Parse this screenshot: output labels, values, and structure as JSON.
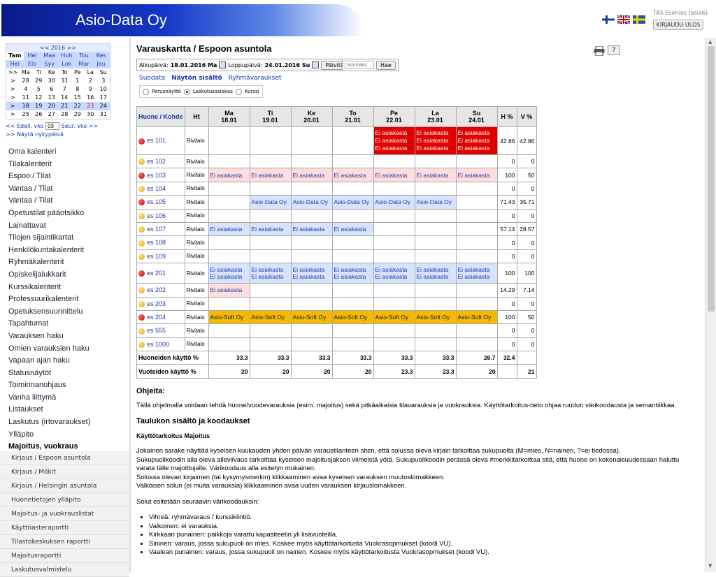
{
  "brand": "Asio-Data Oy",
  "user_label": "TAS Esimies (asio6)",
  "logout_label": "KIRJAUDU ULOS",
  "calendar": {
    "year_label": "<< 2016 >>",
    "months": [
      [
        "Tam",
        "Hel",
        "Maa",
        "Huh",
        "Tou",
        "Kes"
      ],
      [
        "Hei",
        "Elo",
        "Syy",
        "Lok",
        "Mar",
        "Jou"
      ]
    ],
    "weekdays": [
      ">>",
      "Ma",
      "Ti",
      "Ke",
      "To",
      "Pe",
      "La",
      "Su"
    ],
    "weeks": [
      [
        ">",
        "28",
        "29",
        "30",
        "31",
        "1",
        "2",
        "3"
      ],
      [
        ">",
        "4",
        "5",
        "6",
        "7",
        "8",
        "9",
        "10"
      ],
      [
        ">",
        "11",
        "12",
        "13",
        "14",
        "15",
        "16",
        "17"
      ],
      [
        ">",
        "18",
        "19",
        "20",
        "21",
        "22",
        "23",
        "24"
      ],
      [
        ">",
        "25",
        "26",
        "27",
        "28",
        "29",
        "30",
        "31"
      ]
    ],
    "prev_week": "<< Edell. vko",
    "week_value": "03",
    "next_week": "Seur. vko >>",
    "show_current": ">> Näytä nykypäivä"
  },
  "menu": [
    "Oma kalenteri",
    "Tilakalenterit",
    "Espoo / Tilat",
    "Vantaa / Tilat",
    "Vantaa / Tilat",
    "Opetustilat pääotsikko",
    "Lainattavat",
    "Tilojen sijaintikartat",
    "Henkilökuntakalenterit",
    "Ryhmäkalenterit",
    "Opiskelijalukkarit",
    "Kurssikalenterit",
    "Professuurikalenterit",
    "Opetuksensuunnittelu",
    "Tapahtumat",
    "Varauksen haku",
    "Omien varauksien haku",
    "Vapaan ajan haku",
    "Statusnäytöt",
    "Toiminnanohjaus",
    "Vanha liittymä",
    "Listaukset",
    "Laskutus (irtovaraukset)",
    "Ylläpito",
    "Majoitus, vuokraus"
  ],
  "submenu": [
    "Kirjaus / Espoon asuntola",
    "Kirjaus / Mökit",
    "Kirjaus / Helsingin asuntola",
    "Huonetietojen ylläpito",
    "Majoitus- ja vuokrauslistat",
    "Käyttöasteraportti",
    "Tilastokeskuksen raportti",
    "Majoitusraportti",
    "Laskutusvalmistelu"
  ],
  "page_title": "Varauskartta / Espoon asuntola",
  "help_btn": "?",
  "datebar": {
    "start_label": "Alkupäivä:",
    "start_value": "18.01.2016 Ma",
    "end_label": "Loppupäivä:",
    "end_value": "24.01.2016 Su",
    "refresh": "Päivitä",
    "name_placeholder": "Nimihaku",
    "search": "Hae"
  },
  "links": [
    "Suodata",
    "Näytön sisältö",
    "Ryhmävaraukset"
  ],
  "radios": [
    "Perusnäyttö",
    "Laskutusasiakas",
    "Kurssi"
  ],
  "table": {
    "headers": {
      "room": "Huone / Kohde",
      "ht": "Ht",
      "h": "H %",
      "v": "V %"
    },
    "days": [
      {
        "d": "Ma",
        "date": "18.01"
      },
      {
        "d": "Ti",
        "date": "19.01"
      },
      {
        "d": "Ke",
        "date": "20.01"
      },
      {
        "d": "To",
        "date": "21.01"
      },
      {
        "d": "Pe",
        "date": "22.01"
      },
      {
        "d": "La",
        "date": "23.01"
      },
      {
        "d": "Su",
        "date": "24.01"
      }
    ],
    "rows": [
      {
        "room": "es 101",
        "dot": "red",
        "ht": "Rivitalo",
        "h": "42.86",
        "v": "42.86",
        "cells": [
          [
            "",
            ""
          ],
          [
            "",
            ""
          ],
          [
            "",
            ""
          ],
          [
            "",
            ""
          ],
          [
            "red",
            "Ei asiakasta\nEi asiakasta\nEi asiakasta"
          ],
          [
            "red",
            "Ei asiakasta\nEi asiakasta\nEi asiakasta"
          ],
          [
            "red",
            "Ei asiakasta\nEi asiakasta\nEi asiakasta"
          ]
        ]
      },
      {
        "room": "es 102",
        "dot": "yellow",
        "ht": "Rivitalo",
        "h": "0",
        "v": "0",
        "cells": [
          [
            "",
            ""
          ],
          [
            "",
            ""
          ],
          [
            "",
            ""
          ],
          [
            "",
            ""
          ],
          [
            "",
            ""
          ],
          [
            "",
            ""
          ],
          [
            "",
            ""
          ]
        ]
      },
      {
        "room": "es 103",
        "dot": "red",
        "ht": "Rivitalo",
        "h": "100",
        "v": "50",
        "cells": [
          [
            "pink",
            "Ei asiakasta"
          ],
          [
            "pink",
            "Ei asiakasta"
          ],
          [
            "pink",
            "Ei asiakasta"
          ],
          [
            "pink",
            "Ei asiakasta"
          ],
          [
            "pink",
            "Ei asiakasta"
          ],
          [
            "pink",
            "Ei asiakasta"
          ],
          [
            "pink",
            "Ei asiakasta"
          ]
        ]
      },
      {
        "room": "es 104",
        "dot": "yellow",
        "ht": "Rivitalo",
        "h": "0",
        "v": "0",
        "cells": [
          [
            "",
            ""
          ],
          [
            "",
            ""
          ],
          [
            "",
            ""
          ],
          [
            "",
            ""
          ],
          [
            "",
            ""
          ],
          [
            "",
            ""
          ],
          [
            "",
            ""
          ]
        ]
      },
      {
        "room": "es 105",
        "dot": "red",
        "ht": "Rivitalo",
        "h": "71.43",
        "v": "35.71",
        "cells": [
          [
            "",
            ""
          ],
          [
            "blue",
            "Asio-Data Oy"
          ],
          [
            "blue",
            "Asio-Data Oy"
          ],
          [
            "blue",
            "Asio-Data Oy"
          ],
          [
            "blue",
            "Asio-Data Oy"
          ],
          [
            "blue",
            "Asio-Data Oy"
          ],
          [
            "",
            ""
          ]
        ]
      },
      {
        "room": "es 106",
        "dot": "yellow",
        "ht": "Rivitalo",
        "h": "0",
        "v": "0",
        "cells": [
          [
            "",
            ""
          ],
          [
            "",
            ""
          ],
          [
            "",
            ""
          ],
          [
            "",
            ""
          ],
          [
            "",
            ""
          ],
          [
            "",
            ""
          ],
          [
            "",
            ""
          ]
        ]
      },
      {
        "room": "es 107",
        "dot": "yellow",
        "ht": "Rivitalo",
        "h": "57.14",
        "v": "28.57",
        "cells": [
          [
            "blue",
            "Ei asiakasta"
          ],
          [
            "blue",
            "Ei asiakasta"
          ],
          [
            "blue",
            "Ei asiakasta"
          ],
          [
            "blue",
            "Ei asiakasta"
          ],
          [
            "",
            ""
          ],
          [
            "",
            ""
          ],
          [
            "",
            ""
          ]
        ]
      },
      {
        "room": "es 108",
        "dot": "yellow",
        "ht": "Rivitalo",
        "h": "0",
        "v": "0",
        "cells": [
          [
            "",
            ""
          ],
          [
            "",
            ""
          ],
          [
            "",
            ""
          ],
          [
            "",
            ""
          ],
          [
            "",
            ""
          ],
          [
            "",
            ""
          ],
          [
            "",
            ""
          ]
        ]
      },
      {
        "room": "es 109",
        "dot": "yellow",
        "ht": "Rivitalo",
        "h": "0",
        "v": "0",
        "cells": [
          [
            "",
            ""
          ],
          [
            "",
            ""
          ],
          [
            "",
            ""
          ],
          [
            "",
            ""
          ],
          [
            "",
            ""
          ],
          [
            "",
            ""
          ],
          [
            "",
            ""
          ]
        ]
      },
      {
        "room": "es 201",
        "dot": "red",
        "ht": "Rivitalo",
        "h": "100",
        "v": "100",
        "cells": [
          [
            "blue",
            "Ei asiakasta\nEi asiakasta"
          ],
          [
            "blue",
            "Ei asiakasta\nEi asiakasta"
          ],
          [
            "blue",
            "Ei asiakasta\nEi asiakasta"
          ],
          [
            "blue",
            "Ei asiakasta\nEi asiakasta"
          ],
          [
            "blue",
            "Ei asiakasta\nEi asiakasta"
          ],
          [
            "blue",
            "Ei asiakasta\nEi asiakasta"
          ],
          [
            "blue",
            "Ei asiakasta\nEi asiakasta"
          ]
        ]
      },
      {
        "room": "es 202",
        "dot": "yellow",
        "ht": "Rivitalo",
        "h": "14.29",
        "v": "7.14",
        "cells": [
          [
            "pink",
            "Ei asiakasta"
          ],
          [
            "",
            ""
          ],
          [
            "",
            ""
          ],
          [
            "",
            ""
          ],
          [
            "",
            ""
          ],
          [
            "",
            ""
          ],
          [
            "",
            ""
          ]
        ]
      },
      {
        "room": "es 203",
        "dot": "yellow",
        "ht": "Rivitalo",
        "h": "0",
        "v": "0",
        "cells": [
          [
            "",
            ""
          ],
          [
            "",
            ""
          ],
          [
            "",
            ""
          ],
          [
            "",
            ""
          ],
          [
            "",
            ""
          ],
          [
            "",
            ""
          ],
          [
            "",
            ""
          ]
        ]
      },
      {
        "room": "es 204",
        "dot": "red",
        "ht": "Rivitalo",
        "h": "100",
        "v": "50",
        "cells": [
          [
            "orange",
            "Asio-Soft Oy"
          ],
          [
            "orange",
            "Asio-Soft Oy"
          ],
          [
            "orange",
            "Asio-Soft Oy"
          ],
          [
            "orange",
            "Asio-Soft Oy"
          ],
          [
            "orange",
            "Asio-Soft Oy"
          ],
          [
            "orange",
            "Asio-Soft Oy"
          ],
          [
            "orange",
            "Asio-Soft Oy"
          ]
        ]
      },
      {
        "room": "es 555",
        "dot": "yellow",
        "ht": "Rivitalo",
        "h": "0",
        "v": "0",
        "cells": [
          [
            "",
            ""
          ],
          [
            "",
            ""
          ],
          [
            "",
            ""
          ],
          [
            "",
            ""
          ],
          [
            "",
            ""
          ],
          [
            "",
            ""
          ],
          [
            "",
            ""
          ]
        ]
      },
      {
        "room": "es 1000",
        "dot": "yellow",
        "ht": "Rivitalo",
        "h": "0",
        "v": "0",
        "cells": [
          [
            "",
            ""
          ],
          [
            "",
            ""
          ],
          [
            "",
            ""
          ],
          [
            "",
            ""
          ],
          [
            "",
            ""
          ],
          [
            "",
            ""
          ],
          [
            "",
            ""
          ]
        ]
      }
    ],
    "summary": [
      {
        "label": "Huoneiden käyttö %",
        "vals": [
          "33.3",
          "33.3",
          "33.3",
          "33.3",
          "33.3",
          "33.3",
          "26.7"
        ],
        "h": "32.4",
        "v": ""
      },
      {
        "label": "Vuoteiden käyttö %",
        "vals": [
          "20",
          "20",
          "20",
          "20",
          "23.3",
          "23.3",
          "20"
        ],
        "h": "",
        "v": "21"
      }
    ]
  },
  "help": {
    "heading": "Ohjeita:",
    "intro": "Tällä ohjelmalla voidaan tehdä huone/vuodevarauksia (esim. majoitus) sekä pitkäaikaisia tilavarauksia ja vuokrauksia. Käyttötarkoitus-tieto ohjaa ruudun värikoodausta ja semantiikkaa.",
    "h2": "Taulukon sisältö ja koodaukset",
    "purpose": "Käyttötarkoitus Majoitus",
    "body": [
      "Jokainen sarake näyttää kyseisen kuukauden yhden päivän varaustilanteen siten, että solussa oleva kirjain tarkoittaa sukupuolta (M=mies, N=nainen, ?=ei tiedossa).",
      "Sukupuolikoodin alla oleva alleviivaus tarkoittaa kyseisen majoitusjakson viimeistä yötä. Sukupuolikoodin perässä oleva #merkkitarkoittaa sitä, että huone on kokonaisuudessaan haluttu varata tälle majoittujalle. Värikoodaus alla esitetyn mukainen.",
      "Solussa olevan kirjaimen (tai kysymysmerkin) klikkaaminen avaa kyseisen varauksen muutoslomakkeen.",
      "Valkoisen solun (ei muita varauksia) klikkaaminen avaa uuden varauksen kirjauslomakkeen."
    ],
    "colors_intro": "Solut esitetään seuraavin värikoodauksin:",
    "colors": [
      "Vihreä: ryhmävaraus / kurssikiintiö.",
      "Valkoinen: ei varauksia.",
      "Kirkkaan punainen: paikkoja varattu kapasiteetin yli lisävuoteilla.",
      "Sininen: varaus, jossa sukupuoli on mies. Koskee myös käyttötarkoitusta Vuokrasopmukset (koodi VU).",
      "Vaalean punainen: varaus, jossa sukupuoli on nainen. Koskee myös käyttötarkoitusta Vuokrasopmukset (koodi VU)."
    ]
  }
}
